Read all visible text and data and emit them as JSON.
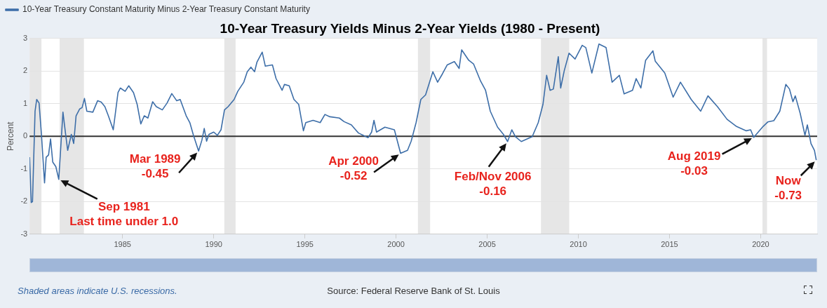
{
  "chart_data": {
    "type": "line",
    "title": "10-Year Treasury Yields Minus 2-Year Yields (1980 - Present)",
    "ylabel": "Percent",
    "legend": "top left",
    "grid": "y",
    "marker": "none",
    "line_style": "solid",
    "xlim": [
      1979.9,
      2023.1
    ],
    "xticks": [
      1985,
      1990,
      1995,
      2000,
      2005,
      2010,
      2015,
      2020
    ],
    "ylim": [
      -3,
      3
    ],
    "yticks": [
      -3,
      -2,
      -1,
      0,
      1,
      2,
      3
    ],
    "series": [
      {
        "name": "10-Year Treasury Constant Maturity Minus 2-Year Treasury Constant Maturity",
        "color": "#3d6ea8",
        "x": [
          1979.9,
          1979.99,
          1980.06,
          1980.2,
          1980.29,
          1980.42,
          1980.55,
          1980.72,
          1980.81,
          1980.94,
          1981.05,
          1981.17,
          1981.34,
          1981.5,
          1981.73,
          1981.86,
          1981.99,
          1982.19,
          1982.32,
          1982.45,
          1982.65,
          1982.78,
          1982.91,
          1983.04,
          1983.37,
          1983.63,
          1983.83,
          1984.03,
          1984.22,
          1984.49,
          1984.75,
          1984.88,
          1985.14,
          1985.34,
          1985.6,
          1985.8,
          1986.0,
          1986.19,
          1986.39,
          1986.65,
          1986.85,
          1987.18,
          1987.44,
          1987.7,
          1987.97,
          1988.16,
          1988.49,
          1988.69,
          1988.89,
          1989.17,
          1989.35,
          1989.48,
          1989.61,
          1989.74,
          1990.0,
          1990.2,
          1990.4,
          1990.59,
          1990.79,
          1991.12,
          1991.32,
          1991.65,
          1991.84,
          1992.04,
          1992.24,
          1992.37,
          1992.66,
          1992.83,
          1993.22,
          1993.42,
          1993.75,
          1993.88,
          1994.14,
          1994.4,
          1994.66,
          1994.92,
          1995.05,
          1995.45,
          1995.84,
          1996.1,
          1996.37,
          1996.89,
          1997.15,
          1997.55,
          1997.94,
          1998.47,
          1998.66,
          1998.79,
          1998.93,
          1999.39,
          1999.91,
          2000.25,
          2000.63,
          2000.83,
          2001.1,
          2001.36,
          2001.62,
          2002.02,
          2002.28,
          2002.54,
          2002.81,
          2003.2,
          2003.46,
          2003.6,
          2003.99,
          2004.25,
          2004.64,
          2004.91,
          2005.17,
          2005.57,
          2005.89,
          2006.12,
          2006.35,
          2006.55,
          2006.87,
          2007.47,
          2007.8,
          2008.06,
          2008.26,
          2008.45,
          2008.63,
          2008.9,
          2009.03,
          2009.23,
          2009.49,
          2009.82,
          2010.21,
          2010.41,
          2010.74,
          2011.13,
          2011.52,
          2011.85,
          2012.25,
          2012.51,
          2012.97,
          2013.17,
          2013.43,
          2013.69,
          2014.09,
          2014.22,
          2014.74,
          2015.2,
          2015.6,
          2016.19,
          2016.71,
          2017.11,
          2017.63,
          2018.16,
          2018.68,
          2019.21,
          2019.45,
          2019.62,
          2020.13,
          2020.39,
          2020.72,
          2021.05,
          2021.38,
          2021.58,
          2021.77,
          2021.9,
          2022.17,
          2022.43,
          2022.56,
          2022.76,
          2022.95,
          2023.05
        ],
        "values": [
          -0.64,
          -2.03,
          -2.0,
          0.77,
          1.13,
          1.02,
          0.06,
          -1.43,
          -0.64,
          -0.57,
          -0.08,
          -0.79,
          -0.93,
          -1.32,
          0.74,
          0.14,
          -0.43,
          0.06,
          -0.22,
          0.63,
          0.84,
          0.88,
          1.16,
          0.77,
          0.74,
          1.09,
          1.05,
          0.91,
          0.63,
          0.2,
          1.34,
          1.48,
          1.38,
          1.55,
          1.34,
          0.98,
          0.38,
          0.63,
          0.56,
          1.06,
          0.91,
          0.81,
          1.02,
          1.31,
          1.09,
          1.13,
          0.63,
          0.42,
          0.03,
          -0.45,
          -0.12,
          0.24,
          -0.15,
          0.06,
          0.13,
          0.03,
          0.2,
          0.81,
          0.91,
          1.13,
          1.38,
          1.66,
          1.98,
          2.12,
          1.98,
          2.27,
          2.58,
          2.15,
          2.19,
          1.77,
          1.41,
          1.59,
          1.55,
          1.13,
          0.98,
          0.17,
          0.42,
          0.49,
          0.42,
          0.67,
          0.6,
          0.56,
          0.45,
          0.35,
          0.1,
          -0.04,
          0.13,
          0.49,
          0.13,
          0.28,
          0.2,
          -0.52,
          -0.43,
          -0.15,
          0.42,
          1.13,
          1.27,
          1.98,
          1.66,
          1.91,
          2.19,
          2.29,
          2.08,
          2.65,
          2.33,
          2.22,
          1.69,
          1.41,
          0.77,
          0.28,
          0.06,
          -0.16,
          0.2,
          -0.01,
          -0.16,
          -0.01,
          0.42,
          0.98,
          1.87,
          1.41,
          1.45,
          2.44,
          1.48,
          2.02,
          2.55,
          2.37,
          2.79,
          2.72,
          1.94,
          2.83,
          2.72,
          1.66,
          1.87,
          1.3,
          1.41,
          1.77,
          1.48,
          2.33,
          2.62,
          2.3,
          1.94,
          1.2,
          1.66,
          1.13,
          0.77,
          1.24,
          0.91,
          0.52,
          0.3,
          0.17,
          0.2,
          -0.03,
          0.3,
          0.44,
          0.48,
          0.77,
          1.59,
          1.45,
          1.06,
          1.24,
          0.7,
          0.03,
          0.35,
          -0.22,
          -0.43,
          -0.73
        ]
      }
    ],
    "ref_lines": [
      {
        "axis": "y",
        "value": 0,
        "color": "#333333"
      }
    ],
    "bands": [
      {
        "axis": "x",
        "from": 1979.9,
        "to": 1980.55,
        "color": "#e6e6e6"
      },
      {
        "axis": "x",
        "from": 1981.55,
        "to": 1982.88,
        "color": "#e6e6e6"
      },
      {
        "axis": "x",
        "from": 1990.58,
        "to": 1991.2,
        "color": "#e6e6e6"
      },
      {
        "axis": "x",
        "from": 2001.2,
        "to": 2001.87,
        "color": "#e6e6e6"
      },
      {
        "axis": "x",
        "from": 2007.95,
        "to": 2009.5,
        "color": "#e6e6e6"
      },
      {
        "axis": "x",
        "from": 2020.1,
        "to": 2020.35,
        "color": "#e6e6e6"
      }
    ],
    "annotations": [
      {
        "text": "Sep 1981\nLast time under 1.0",
        "x": 1981.5,
        "y": -1.32
      },
      {
        "text": "Mar 1989\n-0.45",
        "x": 1989.17,
        "y": -0.45
      },
      {
        "text": "Apr 2000\n-0.52",
        "x": 2000.25,
        "y": -0.52
      },
      {
        "text": "Feb/Nov 2006\n-0.16",
        "x": 2006.12,
        "y": -0.16
      },
      {
        "text": "Aug 2019\n-0.03",
        "x": 2019.62,
        "y": -0.03
      },
      {
        "text": "Now\n-0.73",
        "x": 2023.05,
        "y": -0.73
      },
      "Shaded areas indicate U.S. recessions.",
      "Source: Federal Reserve Bank of St. Louis"
    ]
  }
}
